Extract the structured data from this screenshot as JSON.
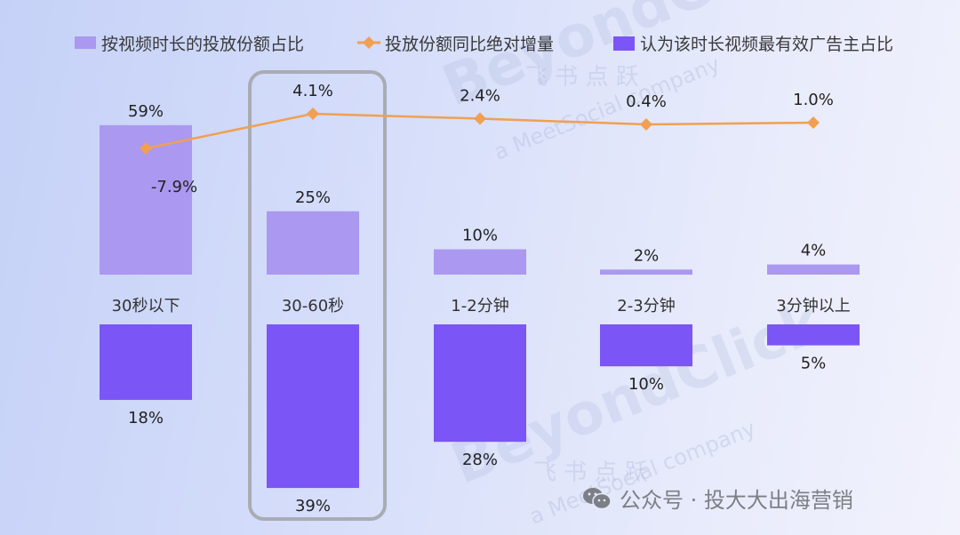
{
  "chart_data": {
    "type": "bar",
    "categories": [
      "30秒以下",
      "30-60秒",
      "1-2分钟",
      "2-3分钟",
      "3分钟以上"
    ],
    "series": [
      {
        "name": "按视频时长的投放份额占比",
        "kind": "bar-up",
        "values": [
          59,
          25,
          10,
          2,
          4
        ],
        "labels": [
          "59%",
          "25%",
          "10%",
          "2%",
          "4%"
        ],
        "color": "#ab98f0"
      },
      {
        "name": "投放份额同比绝对增量",
        "kind": "line",
        "values": [
          -7.9,
          4.1,
          2.4,
          0.4,
          1.0
        ],
        "labels": [
          "-7.9%",
          "4.1%",
          "2.4%",
          "0.4%",
          "1.0%"
        ],
        "color": "#f0a050"
      },
      {
        "name": "认为该时长视频最有效广告主占比",
        "kind": "bar-down",
        "values": [
          18,
          39,
          28,
          10,
          5
        ],
        "labels": [
          "18%",
          "39%",
          "28%",
          "10%",
          "5%"
        ],
        "color": "#7b55f5"
      }
    ],
    "highlight_category": "30-60秒",
    "legend": "top",
    "grid": false
  },
  "watermark": {
    "text": "BeyondClick",
    "sub": "飞 书 点 跃",
    "company": "a MeetSocial company"
  },
  "footer": {
    "icon": "wechat-icon",
    "text": "公众号 · 投大大出海营销"
  }
}
